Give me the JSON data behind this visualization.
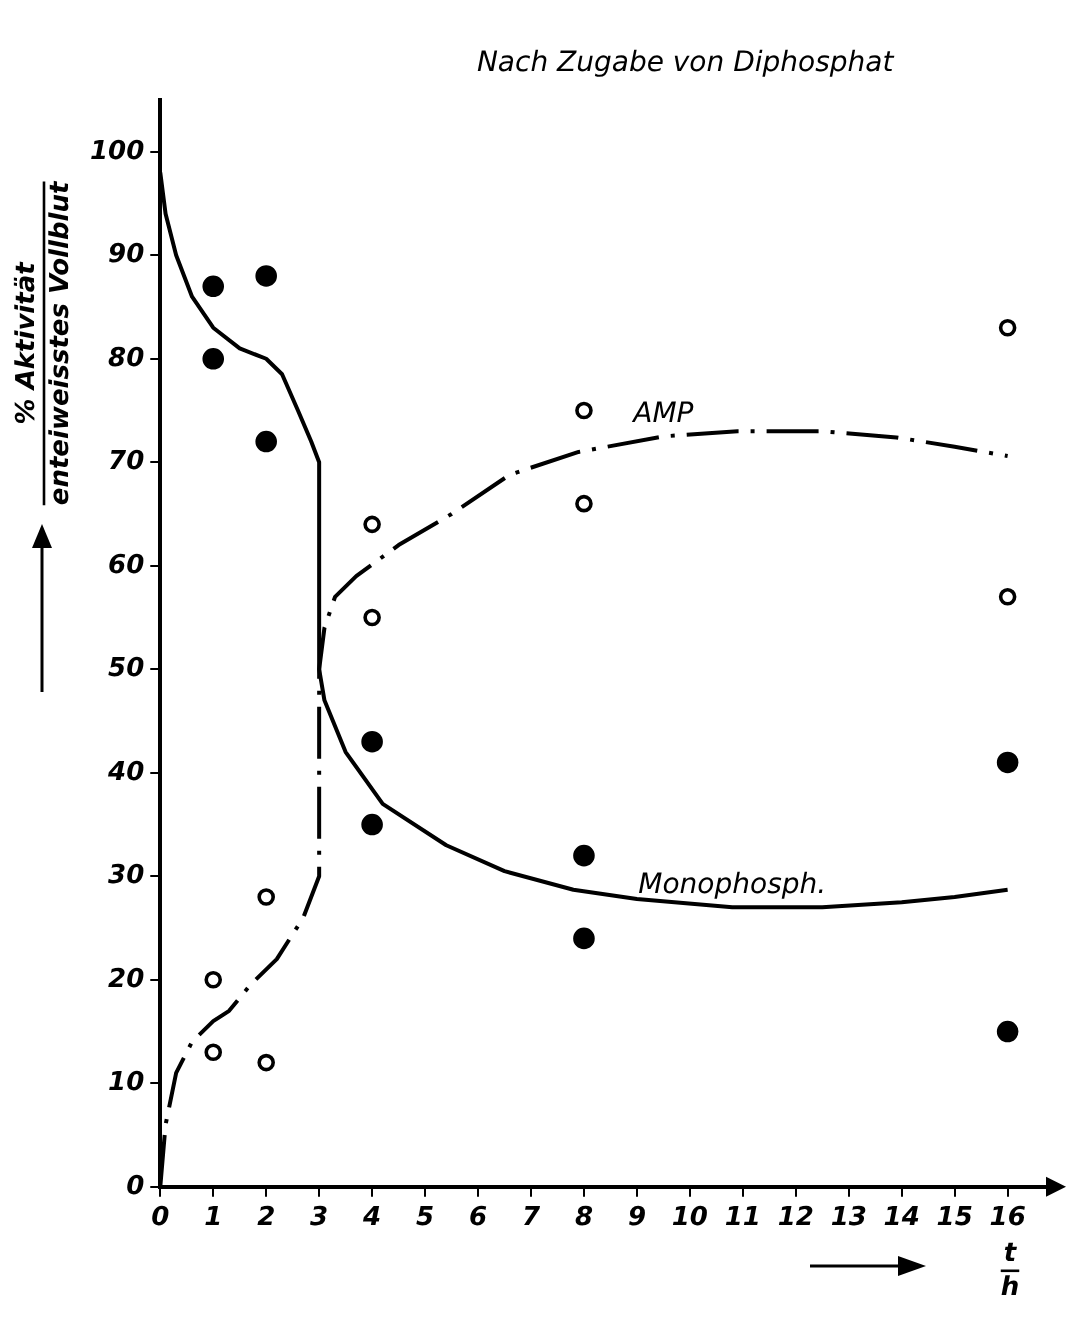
{
  "chart_data": {
    "type": "line",
    "title": "Nach Zugabe von Diphosphat",
    "xlabel": "t\nh",
    "ylabel": "% Aktivität\nenteiweisstes Vollblut",
    "xlim": [
      0,
      16.8
    ],
    "xticks": [
      0,
      1,
      2,
      3,
      4,
      5,
      6,
      7,
      8,
      9,
      10,
      11,
      12,
      13,
      14,
      15,
      16
    ],
    "ylim": [
      0,
      105
    ],
    "yticks": [
      0,
      10,
      20,
      30,
      40,
      50,
      60,
      70,
      80,
      90,
      100
    ],
    "grid": false,
    "legend": false,
    "series": [
      {
        "name": "AMP",
        "line_style": "dashed",
        "marker": "none",
        "color": "#000000",
        "x": [
          0,
          0.1,
          0.3,
          0.6,
          1,
          1.3,
          1.7,
          2.2,
          2.7,
          3,
          3,
          3.1,
          3.3,
          3.7,
          4.5,
          5.5,
          6.6,
          7.9,
          9.5,
          10.9,
          12.5,
          13.9,
          15,
          16
        ],
        "values": [
          0,
          6,
          11,
          14,
          16,
          17,
          19.5,
          22,
          26,
          30,
          50,
          54,
          57,
          59,
          62,
          65,
          68.8,
          71,
          72.5,
          73,
          73,
          72.4,
          71.5,
          70.6
        ]
      },
      {
        "name": "Monophosph.",
        "line_style": "solid",
        "marker": "none",
        "color": "#000000",
        "x": [
          0,
          0.1,
          0.3,
          0.6,
          1,
          1.5,
          2,
          2.3,
          2.6,
          2.85,
          3,
          3,
          3.1,
          3.5,
          4.2,
          5.4,
          6.5,
          7.8,
          9,
          10.8,
          12.5,
          14,
          15,
          16
        ],
        "values": [
          98,
          94,
          90,
          86,
          83,
          81,
          80,
          78.5,
          75,
          72,
          70,
          50,
          47,
          42,
          37,
          33,
          30.5,
          28.7,
          27.8,
          27,
          27,
          27.5,
          28,
          28.7
        ]
      },
      {
        "type": "scatter",
        "marker": "circle",
        "color": "#000000",
        "x": [
          1,
          1,
          2,
          2,
          4,
          4,
          8,
          8,
          16,
          16
        ],
        "values": [
          20,
          13,
          28,
          12,
          64,
          55,
          75,
          66,
          83,
          57
        ]
      },
      {
        "type": "scatter",
        "marker": "circle",
        "color": "#000000",
        "x": [
          1,
          1,
          2,
          2,
          4,
          4,
          8,
          8,
          16,
          16
        ],
        "values": [
          87,
          80,
          88,
          72,
          43,
          35,
          32,
          24,
          41,
          15
        ]
      }
    ]
  }
}
